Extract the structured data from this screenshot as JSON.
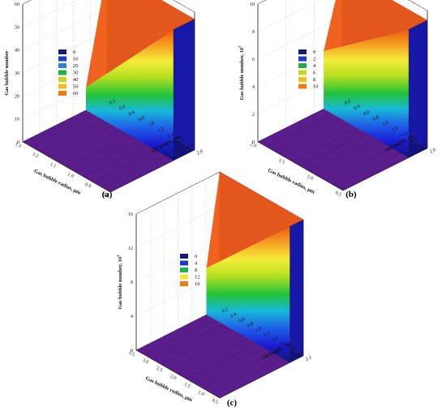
{
  "chart_data": [
    {
      "type": "surface3d",
      "panel_label": "(a)",
      "zlabel": "Gas bubble number",
      "zlabel_sup": "",
      "xlabel": "Oil height, cm",
      "ylabel": "Gas bubble radius, μm",
      "z_ticks": [
        "0",
        "10",
        "20",
        "30",
        "40",
        "50",
        "60"
      ],
      "z_range": [
        0,
        60
      ],
      "oil_ticks": [
        "0.2",
        "0.4",
        "0.6",
        "0.8",
        "1.0",
        "1.2",
        "1.4",
        "1.6",
        "1.8",
        "2.0"
      ],
      "oil_range": [
        0.2,
        2.0
      ],
      "radius_ticks": [
        "1.3",
        "1.2",
        "1.1",
        "1.0",
        "0.9",
        "0.8"
      ],
      "radius_range": [
        1.3,
        0.8
      ],
      "legend": [
        "0",
        "10",
        "20",
        "30",
        "40",
        "50",
        "60"
      ],
      "colors": [
        "#1a1a7a",
        "#1f3bc4",
        "#2a7fe0",
        "#22b04a",
        "#c9d21e",
        "#f0c020",
        "#f07a18"
      ],
      "surface": {
        "z_max": 57,
        "z_at_min_oil": 10,
        "knee_radius_fraction": 0.75
      }
    },
    {
      "type": "surface3d",
      "panel_label": "(b)",
      "zlabel": "Gas bubble number, 10",
      "zlabel_sup": "3",
      "xlabel": "Oil height, cm",
      "ylabel": "Gas bubble radius, μm",
      "z_ticks": [
        "0",
        "2",
        "4",
        "6",
        "8",
        "10"
      ],
      "z_range": [
        0,
        10
      ],
      "oil_ticks": [
        "0.2",
        "0.4",
        "0.6",
        "0.8",
        "1.0",
        "1.2",
        "1.4",
        "1.6",
        "1.8",
        "2.0"
      ],
      "oil_range": [
        0.2,
        2.0
      ],
      "radius_ticks": [
        "2.0",
        "1.5",
        "1.0",
        "0.5"
      ],
      "radius_range": [
        2.0,
        0.5
      ],
      "legend": [
        "0",
        "2",
        "4",
        "6",
        "8",
        "10"
      ],
      "colors": [
        "#1a1a7a",
        "#1f3bc4",
        "#22b04a",
        "#c9d21e",
        "#f0c020",
        "#f07a18"
      ],
      "surface": {
        "z_max": 9.3,
        "z_at_min_oil": 4.2,
        "knee_radius_fraction": 0.78
      }
    },
    {
      "type": "surface3d",
      "panel_label": "(c)",
      "zlabel": "Gas bubble number, 10",
      "zlabel_sup": "3",
      "xlabel": "Oil height, cm",
      "ylabel": "Gas bubble radius, μm",
      "z_ticks": [
        "0",
        "4",
        "8",
        "12",
        "16"
      ],
      "z_range": [
        0,
        16
      ],
      "oil_ticks": [
        "0.2",
        "0.4",
        "0.6",
        "0.8",
        "1.0",
        "1.2",
        "1.4",
        "1.6",
        "1.8",
        "2.0",
        "2.2"
      ],
      "oil_range": [
        0.2,
        2.2
      ],
      "radius_ticks": [
        "3.5",
        "3.0",
        "2.5",
        "2.0",
        "1.5",
        "1.0",
        "0.5"
      ],
      "radius_range": [
        3.5,
        0.5
      ],
      "legend": [
        "0",
        "4",
        "8",
        "12",
        "16"
      ],
      "colors": [
        "#1a1a7a",
        "#1f3bc4",
        "#22b04a",
        "#f5e63a",
        "#f07a18"
      ],
      "surface": {
        "z_max": 16,
        "z_at_min_oil": 5.5,
        "knee_radius_fraction": 0.84
      }
    }
  ]
}
